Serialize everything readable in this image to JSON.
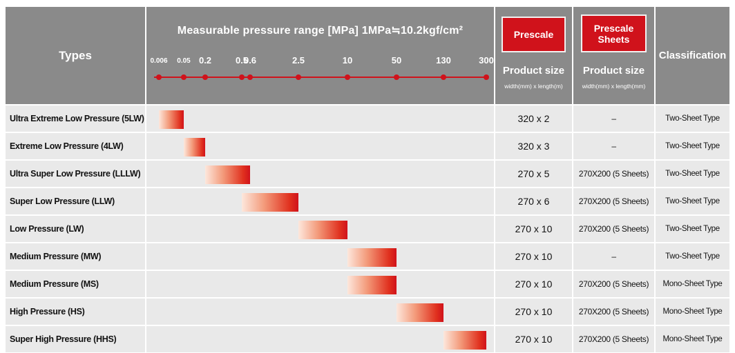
{
  "header": {
    "types": "Types",
    "range_title": "Measurable pressure range [MPa] 1MPa≒10.2kgf/cm²",
    "prescale": "Prescale",
    "prescale_sheets": "Prescale Sheets",
    "product_size": "Product size",
    "prescale_size_unit": "width(mm) x length(m)",
    "sheets_size_unit": "width(mm) x length(mm)",
    "classification": "Classification"
  },
  "chart_data": {
    "type": "table",
    "title": "Measurable pressure range [MPa] 1MPa≒10.2kgf/cm²",
    "axis_ticks": [
      "0.006",
      "0.05",
      "0.2",
      "0.5",
      "0.6",
      "2.5",
      "10",
      "50",
      "130",
      "300"
    ],
    "columns": [
      "Types",
      "Measurable pressure range [MPa]",
      "Prescale Product size",
      "Prescale Sheets Product size",
      "Classification"
    ],
    "rows": [
      {
        "type": "Ultra Extreme Low Pressure (5LW)",
        "range": [
          "0.006",
          "0.05"
        ],
        "prescale_size": "320 x 2",
        "sheets_size": "–",
        "classification": "Two-Sheet Type"
      },
      {
        "type": "Extreme Low Pressure (4LW)",
        "range": [
          "0.05",
          "0.2"
        ],
        "prescale_size": "320 x 3",
        "sheets_size": "–",
        "classification": "Two-Sheet Type"
      },
      {
        "type": "Ultra Super Low Pressure (LLLW)",
        "range": [
          "0.2",
          "0.6"
        ],
        "prescale_size": "270 x 5",
        "sheets_size": "270X200 (5 Sheets)",
        "classification": "Two-Sheet Type"
      },
      {
        "type": "Super Low Pressure (LLW)",
        "range": [
          "0.5",
          "2.5"
        ],
        "prescale_size": "270 x 6",
        "sheets_size": "270X200 (5 Sheets)",
        "classification": "Two-Sheet Type"
      },
      {
        "type": "Low Pressure (LW)",
        "range": [
          "2.5",
          "10"
        ],
        "prescale_size": "270 x 10",
        "sheets_size": "270X200 (5 Sheets)",
        "classification": "Two-Sheet Type"
      },
      {
        "type": "Medium Pressure (MW)",
        "range": [
          "10",
          "50"
        ],
        "prescale_size": "270 x 10",
        "sheets_size": "–",
        "classification": "Two-Sheet Type"
      },
      {
        "type": "Medium Pressure (MS)",
        "range": [
          "10",
          "50"
        ],
        "prescale_size": "270 x 10",
        "sheets_size": "270X200 (5 Sheets)",
        "classification": "Mono-Sheet Type"
      },
      {
        "type": "High Pressure (HS)",
        "range": [
          "50",
          "130"
        ],
        "prescale_size": "270 x 10",
        "sheets_size": "270X200 (5 Sheets)",
        "classification": "Mono-Sheet Type"
      },
      {
        "type": "Super High Pressure (HHS)",
        "range": [
          "130",
          "300"
        ],
        "prescale_size": "270 x 10",
        "sheets_size": "270X200 (5 Sheets)",
        "classification": "Mono-Sheet Type"
      }
    ]
  },
  "colors": {
    "header_bg": "#8a8a8a",
    "accent_red": "#d0121b",
    "row_bg": "#e9e9e9"
  }
}
